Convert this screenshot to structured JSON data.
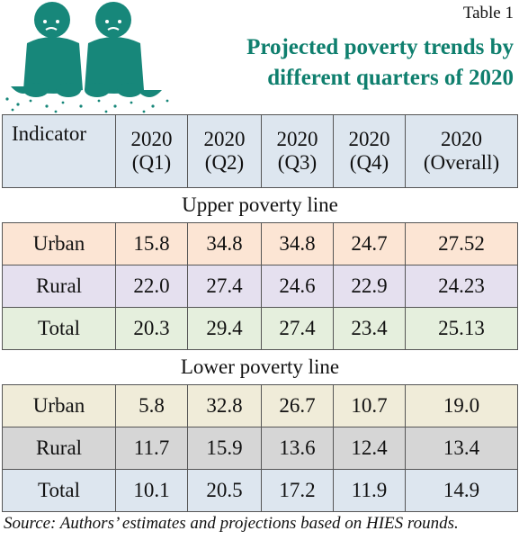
{
  "table_label": "Table 1",
  "title_line1": "Projected poverty trends by",
  "title_line2": "different quarters of 2020",
  "colors": {
    "title": "#0f7f6e",
    "figures": "#17877a"
  },
  "illustration": "two-sad-people-with-begging-bowls-icon",
  "headers": {
    "indicator": "Indicator",
    "q1_year": "2020",
    "q1": "(Q1)",
    "q2_year": "2020",
    "q2": "(Q2)",
    "q3_year": "2020",
    "q3": "(Q3)",
    "q4_year": "2020",
    "q4": "(Q4)",
    "overall_year": "2020",
    "overall": "(Overall)"
  },
  "upper": {
    "title": "Upper poverty line",
    "rows": [
      {
        "label": "Urban",
        "values": [
          "15.8",
          "34.8",
          "34.8",
          "24.7",
          "27.52"
        ]
      },
      {
        "label": "Rural",
        "values": [
          "22.0",
          "27.4",
          "24.6",
          "22.9",
          "24.23"
        ]
      },
      {
        "label": "Total",
        "values": [
          "20.3",
          "29.4",
          "27.4",
          "23.4",
          "25.13"
        ]
      }
    ]
  },
  "lower": {
    "title": "Lower poverty line",
    "rows": [
      {
        "label": "Urban",
        "values": [
          "5.8",
          "32.8",
          "26.7",
          "10.7",
          "19.0"
        ]
      },
      {
        "label": "Rural",
        "values": [
          "11.7",
          "15.9",
          "13.6",
          "12.4",
          "13.4"
        ]
      },
      {
        "label": "Total",
        "values": [
          "10.1",
          "20.5",
          "17.2",
          "11.9",
          "14.9"
        ]
      }
    ]
  },
  "source": "Source: Authors’ estimates and projections based on HIES rounds."
}
